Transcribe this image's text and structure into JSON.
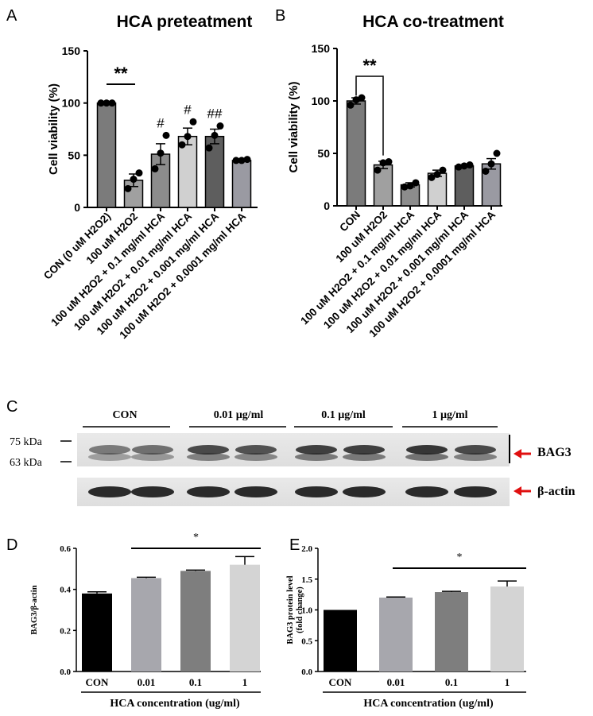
{
  "panels": {
    "A": {
      "letter": "A"
    },
    "B": {
      "letter": "B"
    },
    "C": {
      "letter": "C"
    },
    "D": {
      "letter": "D"
    },
    "E": {
      "letter": "E"
    }
  },
  "western_blot": {
    "groups": [
      "CON",
      "0.01 µg/ml",
      "0.1 µg/ml",
      "1 µg/ml"
    ],
    "markers": [
      "75 kDa",
      "63 kDa"
    ],
    "targets": [
      "BAG3",
      "β-actin"
    ],
    "arrow_color": "#e01010"
  },
  "chart_data": [
    {
      "id": "A",
      "type": "bar",
      "title": "HCA preteatment",
      "ylabel": "Cell viability (%)",
      "ylim": [
        0,
        150
      ],
      "yticks": [
        "0",
        "50",
        "100",
        "150"
      ],
      "categories": [
        "CON (0 uM H2O2)",
        "100 uM H2O2",
        "100 uM H2O2 + 0.1 mg/ml HCA",
        "100 uM H2O2 + 0.01 mg/ml HCA",
        "100 uM H2O2 + 0.001 mg/ml HCA",
        "100 uM H2O2 + 0.0001 mg/ml HCA"
      ],
      "values": [
        100,
        26,
        51,
        68,
        68,
        45
      ],
      "errors": [
        0.5,
        6,
        10,
        8,
        7,
        1
      ],
      "points": [
        [
          100,
          100,
          100
        ],
        [
          18,
          27,
          33
        ],
        [
          37,
          52,
          69
        ],
        [
          60,
          68,
          82
        ],
        [
          57,
          69,
          78
        ],
        [
          45,
          45,
          46
        ]
      ],
      "colors": [
        "#7b7b7b",
        "#a0a0a0",
        "#8c8c8c",
        "#d0d0d0",
        "#5e5e5e",
        "#9a9aa2"
      ],
      "annotations": [
        "",
        "",
        "#",
        "#",
        "##",
        ""
      ],
      "significance": {
        "label": "**",
        "from": 0,
        "to": 1
      }
    },
    {
      "id": "B",
      "type": "bar",
      "title": "HCA co-treatment",
      "ylabel": "Cell viability (%)",
      "ylim": [
        0,
        150
      ],
      "yticks": [
        "0",
        "50",
        "100",
        "150"
      ],
      "categories": [
        "CON",
        "100 uM H2O2",
        "100 uM H2O2 + 0.1 mg/ml HCA",
        "100 uM H2O2 + 0.01 mg/ml HCA",
        "100 uM H2O2 + 0.001 mg/ml HCA",
        "100 uM H2O2 + 0.0001 mg/ml HCA"
      ],
      "values": [
        100,
        39,
        20,
        31,
        38,
        40
      ],
      "errors": [
        3,
        3.5,
        2,
        3,
        1,
        5
      ],
      "points": [
        [
          96,
          101,
          103
        ],
        [
          34,
          41,
          42
        ],
        [
          18,
          19,
          22
        ],
        [
          27,
          30,
          34
        ],
        [
          37,
          38,
          39
        ],
        [
          33,
          40,
          50
        ]
      ],
      "colors": [
        "#7b7b7b",
        "#a0a0a0",
        "#8c8c8c",
        "#d0d0d0",
        "#5e5e5e",
        "#9a9aa2"
      ],
      "significance": {
        "label": "**",
        "from": 0,
        "to": 1
      }
    },
    {
      "id": "D",
      "type": "bar",
      "ylabel": "BAG3/β-actin",
      "xlabel": "HCA concentration (ug/ml)",
      "ylim": [
        0,
        0.6
      ],
      "yticks": [
        "0.0",
        "0.2",
        "0.4",
        "0.6"
      ],
      "categories": [
        "CON",
        "0.01",
        "0.1",
        "1"
      ],
      "values": [
        0.38,
        0.455,
        0.49,
        0.52
      ],
      "errors": [
        0.008,
        0.004,
        0.004,
        0.04
      ],
      "colors": [
        "#000000",
        "#a7a7ad",
        "#7e7e7e",
        "#d4d4d4"
      ],
      "significance": {
        "label": "*",
        "from": 1,
        "to": 3
      }
    },
    {
      "id": "E",
      "type": "bar",
      "ylabel": "BAG3 protein level (fold change)",
      "ylabel_lines": [
        "BAG3 protein level",
        "(fold change)"
      ],
      "xlabel": "HCA concentration (ug/ml)",
      "ylim": [
        0,
        2.0
      ],
      "yticks": [
        "0.0",
        "0.5",
        "1.0",
        "1.5",
        "2.0"
      ],
      "categories": [
        "CON",
        "0.01",
        "0.1",
        "1"
      ],
      "values": [
        1.0,
        1.2,
        1.29,
        1.38
      ],
      "errors": [
        0,
        0.01,
        0.012,
        0.09
      ],
      "colors": [
        "#000000",
        "#a7a7ad",
        "#7e7e7e",
        "#d4d4d4"
      ],
      "significance": {
        "label": "*",
        "from": 1,
        "to": 3
      }
    }
  ]
}
